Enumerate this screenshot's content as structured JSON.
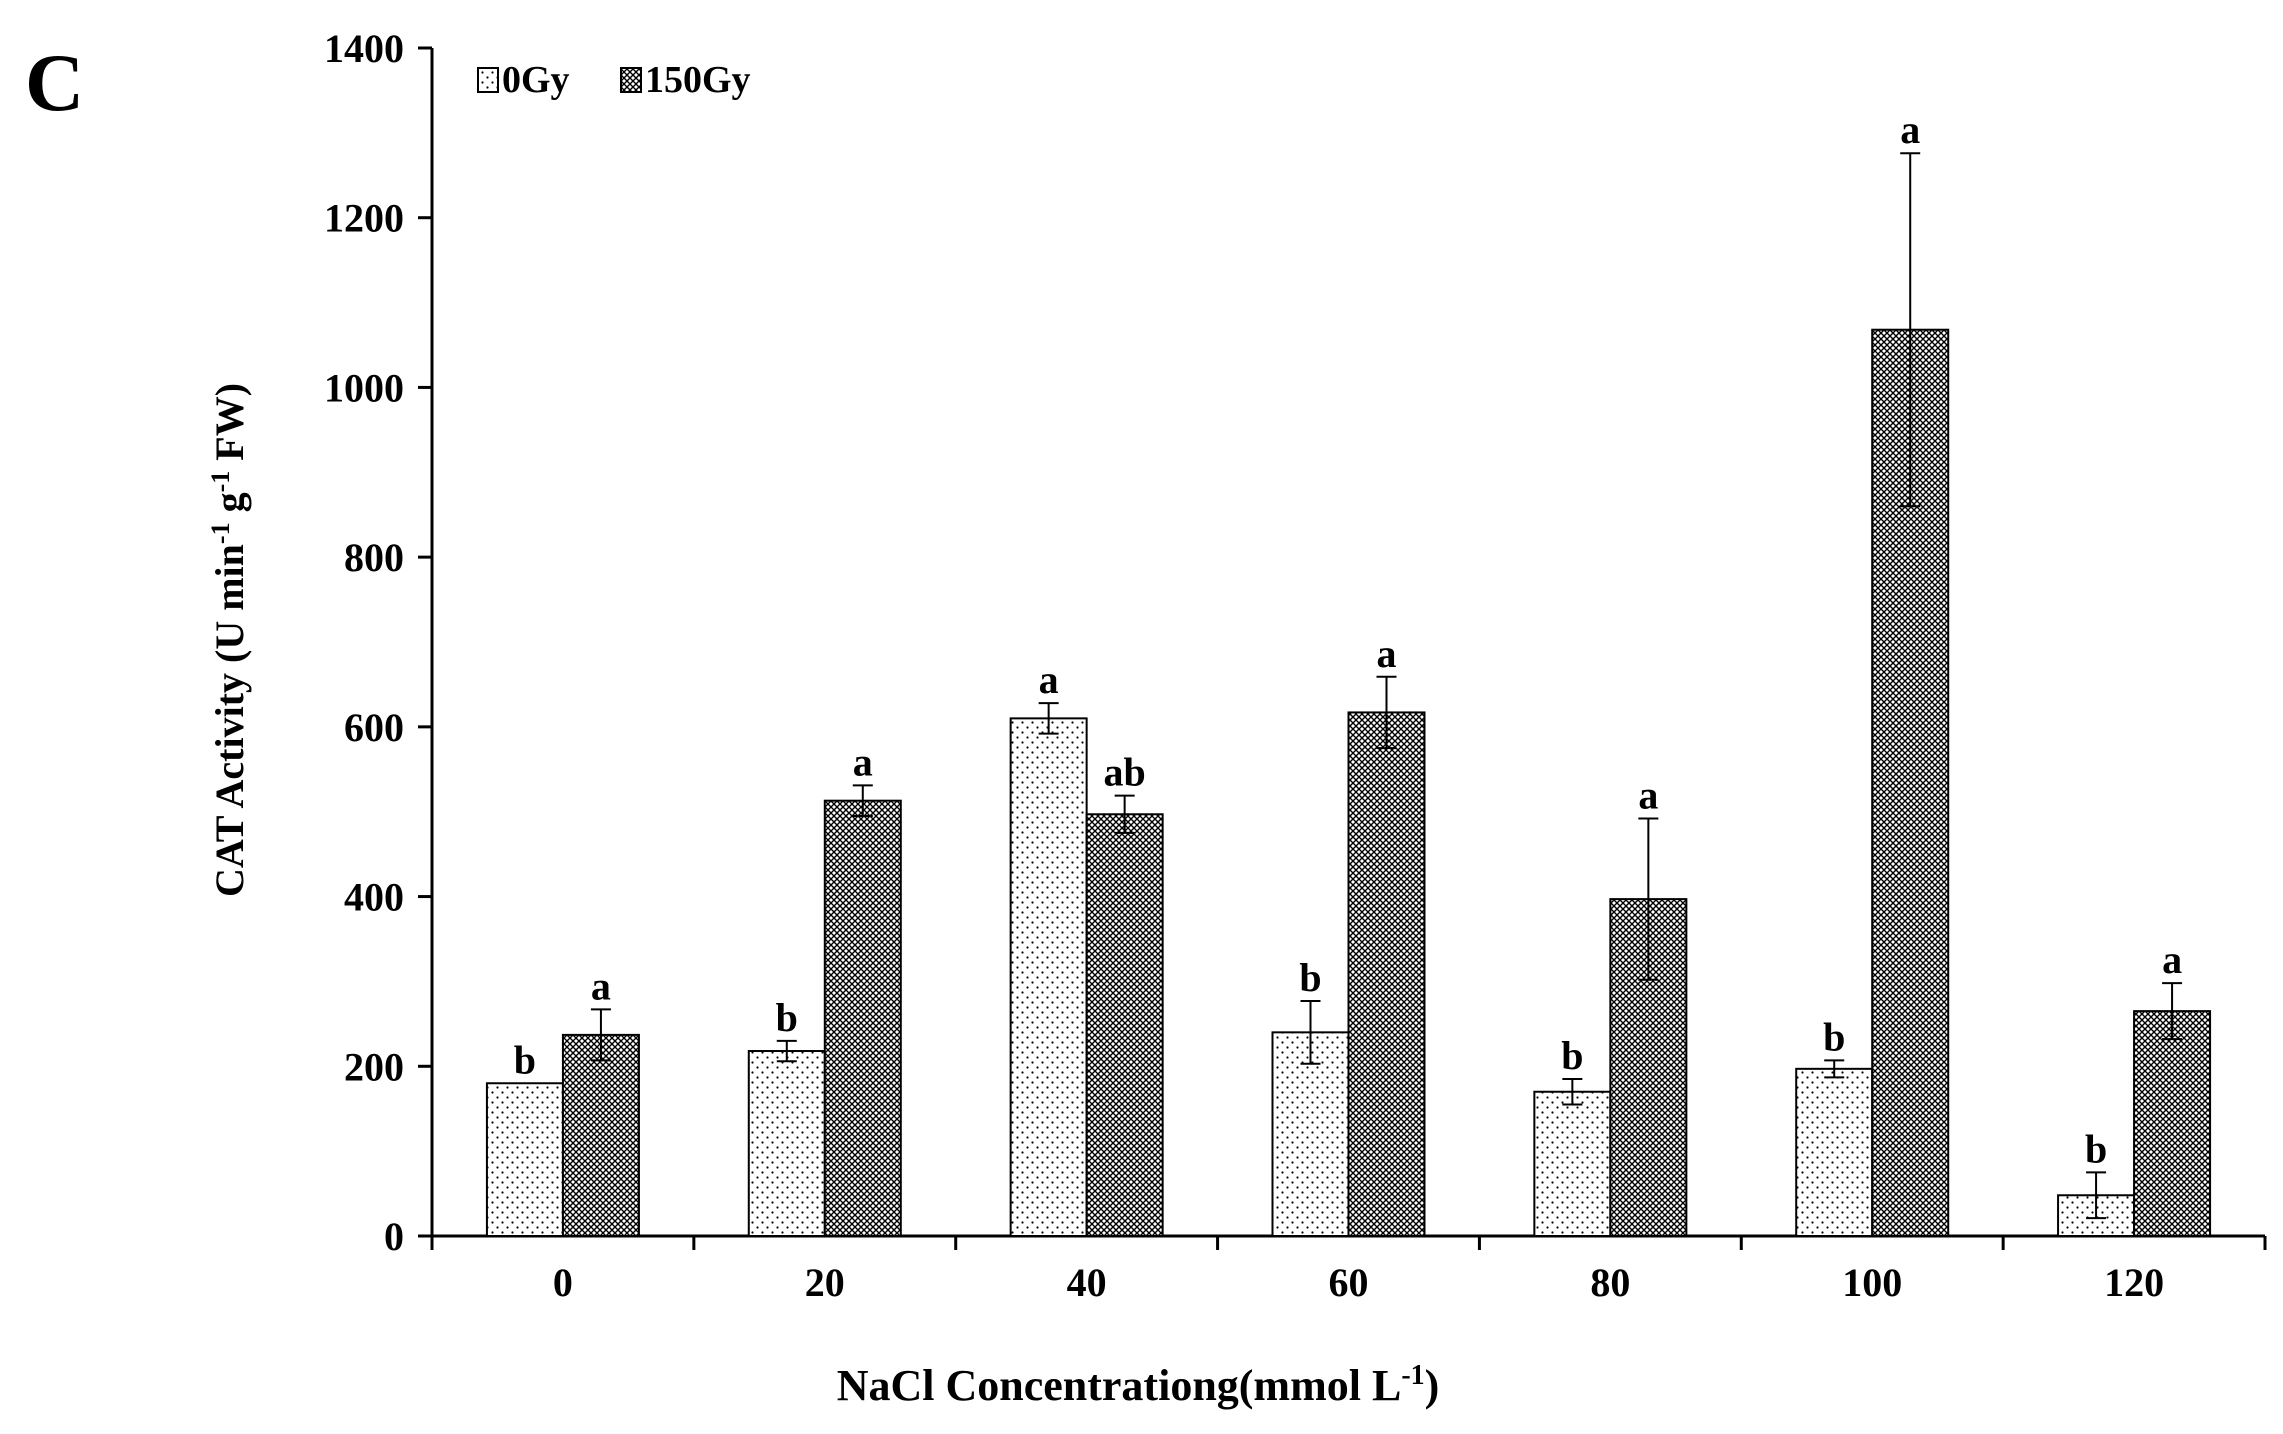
{
  "panel_label": "C",
  "chart_data": {
    "type": "bar",
    "title": "",
    "xlabel_main": "NaCl Concentrationg(mmol L",
    "xlabel_sup": "-1",
    "xlabel_end": ")",
    "ylabel_parts": [
      {
        "text": "CAT Activity (U min",
        "sup": false
      },
      {
        "text": "-1",
        "sup": true
      },
      {
        "text": " g",
        "sup": false
      },
      {
        "text": "-1",
        "sup": true
      },
      {
        "text": " FW)",
        "sup": false
      }
    ],
    "categories": [
      "0",
      "20",
      "40",
      "60",
      "80",
      "100",
      "120"
    ],
    "ylim": [
      0,
      1400
    ],
    "yticks": [
      "0",
      "200",
      "400",
      "600",
      "800",
      "1000",
      "1200",
      "1400"
    ],
    "legend_position": "top-left",
    "series": [
      {
        "name": "0Gy",
        "pattern": "dots",
        "values": [
          180,
          218,
          610,
          240,
          170,
          197,
          48
        ],
        "errors": [
          0,
          12,
          18,
          37,
          15,
          10,
          27
        ],
        "letters": [
          "b",
          "b",
          "a",
          "b",
          "b",
          "b",
          "b"
        ]
      },
      {
        "name": "150Gy",
        "pattern": "crosshatch",
        "values": [
          237,
          513,
          497,
          617,
          397,
          1068,
          265
        ],
        "errors": [
          30,
          18,
          22,
          42,
          95,
          208,
          33
        ],
        "letters": [
          "a",
          "a",
          "ab",
          "a",
          "a",
          "a",
          "a"
        ]
      }
    ]
  }
}
